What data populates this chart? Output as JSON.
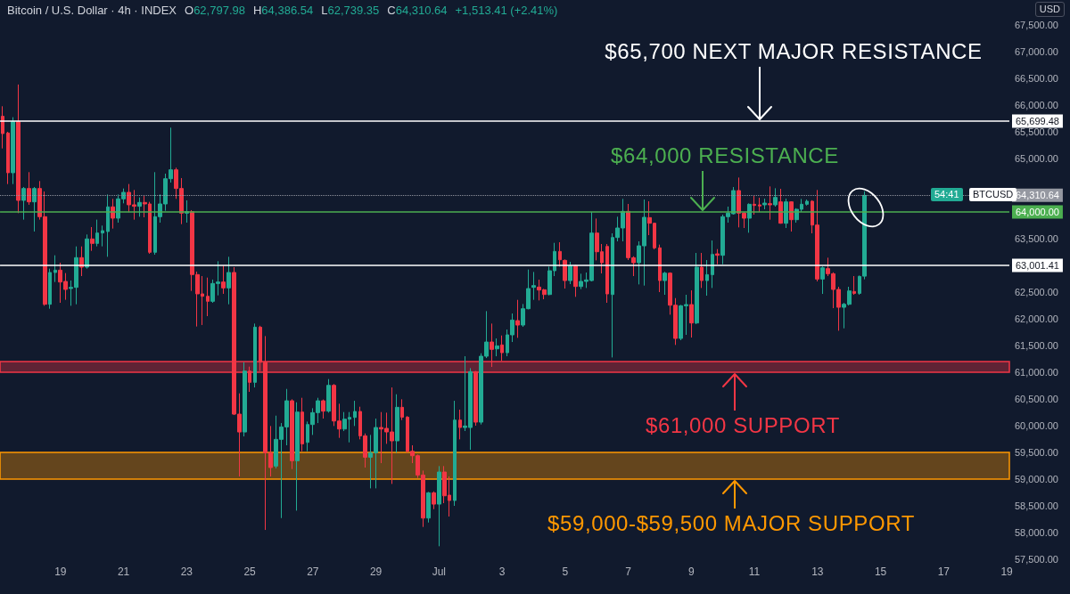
{
  "chart_data": {
    "type": "candlestick",
    "title": "Bitcoin / U.S. Dollar · 4h · INDEX",
    "categories": [
      null,
      null,
      null,
      null,
      null,
      null,
      null,
      null,
      null,
      null,
      null,
      "19",
      null,
      null,
      null,
      null,
      null,
      null,
      null,
      null,
      null,
      null,
      null,
      "21",
      null,
      null,
      null,
      null,
      null,
      null,
      null,
      null,
      null,
      null,
      null,
      "23",
      null,
      null,
      null,
      null,
      null,
      null,
      null,
      null,
      null,
      null,
      null,
      "25",
      null,
      null,
      null,
      null,
      null,
      null,
      null,
      null,
      null,
      null,
      null,
      "27",
      null,
      null,
      null,
      null,
      null,
      null,
      null,
      null,
      null,
      null,
      null,
      "29",
      null,
      null,
      null,
      null,
      null,
      null,
      null,
      null,
      null,
      null,
      null,
      "Jul",
      null,
      null,
      null,
      null,
      null,
      null,
      null,
      null,
      null,
      null,
      null,
      "3",
      null,
      null,
      null,
      null,
      null,
      null,
      null,
      null,
      null,
      null,
      null,
      "5",
      null,
      null,
      null,
      null,
      null,
      null,
      null,
      null,
      null,
      null,
      null,
      "7",
      null,
      null,
      null,
      null,
      null,
      null,
      null,
      null,
      null,
      null,
      null,
      "9",
      null,
      null,
      null,
      null,
      null,
      null,
      null,
      null,
      null,
      null,
      null,
      "11",
      null,
      null,
      null,
      null,
      null,
      null,
      null,
      null,
      null,
      null,
      null,
      "13",
      null,
      null,
      null,
      null,
      null,
      null,
      null,
      null,
      null,
      null,
      null,
      "15",
      null,
      null,
      null,
      null,
      null,
      null,
      null,
      null,
      null,
      null,
      null,
      "17",
      null,
      null,
      null,
      null,
      null,
      null,
      null,
      null,
      null,
      null,
      null,
      "19"
    ],
    "ohlc": [
      [
        65790,
        65978,
        65189,
        65467
      ],
      [
        65478,
        65500,
        64522,
        64734
      ],
      [
        64734,
        65773,
        64522,
        65690
      ],
      [
        65690,
        66385,
        63978,
        64217
      ],
      [
        64217,
        64467,
        63856,
        64439
      ],
      [
        64439,
        64745,
        64134,
        64189
      ],
      [
        64189,
        64467,
        63634,
        64439
      ],
      [
        64439,
        64578,
        63856,
        63911
      ],
      [
        63911,
        64384,
        62244,
        62272
      ],
      [
        62272,
        62939,
        62189,
        62867
      ],
      [
        62867,
        63189,
        62689,
        62911
      ],
      [
        62911,
        63050,
        62300,
        62689
      ],
      [
        62700,
        62856,
        62356,
        62550
      ],
      [
        62567,
        62717,
        62244,
        62589
      ],
      [
        62589,
        63355,
        62272,
        63145
      ],
      [
        63145,
        63355,
        62800,
        62967
      ],
      [
        62967,
        63578,
        62939,
        63495
      ],
      [
        63495,
        63717,
        63272,
        63411
      ],
      [
        63411,
        63856,
        63356,
        63606
      ],
      [
        63606,
        63745,
        63356,
        63650
      ],
      [
        63634,
        64328,
        63161,
        64095
      ],
      [
        64095,
        64245,
        63689,
        63884
      ],
      [
        63884,
        64328,
        63800,
        64245
      ],
      [
        64245,
        64439,
        64161,
        64367
      ],
      [
        64367,
        64523,
        63995,
        64134
      ],
      [
        64134,
        64411,
        63856,
        64106
      ],
      [
        64106,
        64272,
        63911,
        64178
      ],
      [
        64178,
        64300,
        63900,
        64150
      ],
      [
        64150,
        64189,
        63217,
        63245
      ],
      [
        63245,
        64745,
        63200,
        63911
      ],
      [
        63911,
        64328,
        63800,
        64150
      ],
      [
        64150,
        64717,
        64023,
        64622
      ],
      [
        64622,
        65578,
        64550,
        64789
      ],
      [
        64789,
        64828,
        64245,
        64439
      ],
      [
        64439,
        64634,
        63772,
        63978
      ],
      [
        63978,
        64217,
        63800,
        64006
      ],
      [
        64006,
        64034,
        62522,
        62828
      ],
      [
        62828,
        62884,
        61856,
        62467
      ],
      [
        62467,
        62800,
        61884,
        62422
      ],
      [
        62422,
        62772,
        62050,
        62328
      ],
      [
        62328,
        62734,
        62300,
        62661
      ],
      [
        62661,
        63078,
        62439,
        62689
      ],
      [
        62689,
        62995,
        62467,
        62578
      ],
      [
        62578,
        63161,
        62272,
        62867
      ],
      [
        62867,
        62967,
        60200,
        60216
      ],
      [
        60216,
        60605,
        59049,
        59882
      ],
      [
        59882,
        61188,
        59799,
        61022
      ],
      [
        61022,
        61105,
        60633,
        60811
      ],
      [
        60811,
        61911,
        60716,
        61844
      ],
      [
        61844,
        61870,
        61022,
        61188
      ],
      [
        61188,
        61677,
        58049,
        59493
      ],
      [
        59493,
        59994,
        59049,
        59216
      ],
      [
        59244,
        60188,
        59200,
        59744
      ],
      [
        59744,
        60049,
        58271,
        59977
      ],
      [
        59977,
        60688,
        59633,
        60466
      ],
      [
        60466,
        60494,
        59188,
        59344
      ],
      [
        59344,
        60438,
        58410,
        60255
      ],
      [
        60255,
        60522,
        59522,
        59660
      ],
      [
        59688,
        60077,
        59522,
        60022
      ],
      [
        60022,
        60327,
        59827,
        60244
      ],
      [
        60244,
        60522,
        60049,
        60466
      ],
      [
        60466,
        60490,
        60133,
        60272
      ],
      [
        60272,
        60872,
        60244,
        60755
      ],
      [
        60755,
        60780,
        59994,
        60088
      ],
      [
        60088,
        60411,
        59772,
        59938
      ],
      [
        59938,
        60255,
        59899,
        60122
      ],
      [
        60122,
        60255,
        59688,
        60155
      ],
      [
        60155,
        60466,
        59994,
        60266
      ],
      [
        60266,
        60355,
        59744,
        59810
      ],
      [
        59810,
        59855,
        59216,
        59410
      ],
      [
        59410,
        59827,
        58827,
        59493
      ],
      [
        59493,
        60133,
        58827,
        59966
      ],
      [
        59966,
        60255,
        59299,
        59938
      ],
      [
        59950,
        60244,
        59660,
        59883
      ],
      [
        59883,
        60716,
        58910,
        59716
      ],
      [
        59716,
        60588,
        59494,
        60344
      ],
      [
        60344,
        60494,
        60105,
        60160
      ],
      [
        60160,
        60180,
        59494,
        59521
      ],
      [
        59521,
        59633,
        59299,
        59438
      ],
      [
        59438,
        59460,
        59022,
        59077
      ],
      [
        59077,
        59160,
        58105,
        58271
      ],
      [
        58271,
        58760,
        58188,
        58744
      ],
      [
        58744,
        58770,
        58438,
        58532
      ],
      [
        58532,
        59244,
        57744,
        59133
      ],
      [
        59133,
        59244,
        58550,
        58688
      ],
      [
        58700,
        59050,
        58300,
        58600
      ],
      [
        58600,
        60466,
        58500,
        60105
      ],
      [
        60105,
        60300,
        59744,
        59966
      ],
      [
        59966,
        61300,
        59900,
        59994
      ],
      [
        59966,
        61077,
        59549,
        61011
      ],
      [
        61011,
        61022,
        60000,
        60066
      ],
      [
        60066,
        61355,
        60022,
        61300
      ],
      [
        61300,
        62144,
        61266,
        61566
      ],
      [
        61566,
        61911,
        61100,
        61428
      ],
      [
        61438,
        61633,
        61300,
        61494
      ],
      [
        61511,
        61688,
        61211,
        61366
      ],
      [
        61366,
        61800,
        61300,
        61700
      ],
      [
        61700,
        62100,
        61566,
        61977
      ],
      [
        61966,
        62355,
        61644,
        61883
      ],
      [
        61883,
        62277,
        61850,
        62189
      ],
      [
        62189,
        62922,
        62177,
        62566
      ],
      [
        62589,
        62877,
        62355,
        62622
      ],
      [
        62594,
        62733,
        62344,
        62539
      ],
      [
        62544,
        62560,
        62366,
        62455
      ],
      [
        62455,
        62977,
        62440,
        62900
      ],
      [
        62900,
        63422,
        62800,
        63261
      ],
      [
        63261,
        63433,
        62977,
        63105
      ],
      [
        63094,
        63111,
        62566,
        62716
      ],
      [
        62716,
        63066,
        62650,
        62994
      ],
      [
        62994,
        63010,
        62411,
        62605
      ],
      [
        62605,
        62844,
        62555,
        62700
      ],
      [
        62700,
        62866,
        62577,
        62728
      ],
      [
        62716,
        64000,
        62700,
        63605
      ],
      [
        63605,
        63877,
        63094,
        63255
      ],
      [
        63255,
        63400,
        62850,
        63050
      ],
      [
        63355,
        63400,
        62300,
        62466
      ],
      [
        62455,
        63600,
        61277,
        63522
      ],
      [
        63522,
        63911,
        63450,
        63700
      ],
      [
        63700,
        64245,
        63450,
        64011
      ],
      [
        64011,
        64150,
        63100,
        63144
      ],
      [
        63144,
        63170,
        62800,
        63050
      ],
      [
        63050,
        63450,
        62644,
        63366
      ],
      [
        63366,
        64233,
        62622,
        63900
      ],
      [
        63894,
        64200,
        63566,
        63789
      ],
      [
        63789,
        63800,
        63300,
        63328
      ],
      [
        63328,
        63389,
        62500,
        62716
      ],
      [
        62716,
        62880,
        62450,
        62855
      ],
      [
        62855,
        62870,
        62077,
        62255
      ],
      [
        62255,
        62388,
        61511,
        61633
      ],
      [
        61633,
        62260,
        61600,
        62244
      ],
      [
        62244,
        62450,
        61700,
        62266
      ],
      [
        62266,
        62533,
        61650,
        61922
      ],
      [
        61922,
        63233,
        61900,
        62966
      ],
      [
        62966,
        63233,
        62577,
        62716
      ],
      [
        62716,
        63100,
        62433,
        62827
      ],
      [
        62827,
        63466,
        62577,
        63205
      ],
      [
        63216,
        63305,
        63022,
        63189
      ],
      [
        63189,
        63950,
        63022,
        63911
      ],
      [
        63911,
        64100,
        63800,
        63978
      ],
      [
        63966,
        64466,
        63950,
        64400
      ],
      [
        64400,
        64644,
        63711,
        63978
      ],
      [
        63978,
        64000,
        63700,
        63883
      ],
      [
        63883,
        64160,
        63611,
        64144
      ],
      [
        64144,
        64300,
        63950,
        64122
      ],
      [
        64133,
        64266,
        64000,
        64111
      ],
      [
        64133,
        64250,
        64050,
        64166
      ],
      [
        64155,
        64478,
        63855,
        64133
      ],
      [
        64133,
        64444,
        64100,
        64272
      ],
      [
        64189,
        64433,
        63780,
        63789
      ],
      [
        63789,
        64250,
        63700,
        64189
      ],
      [
        64189,
        64200,
        63633,
        63855
      ],
      [
        63855,
        64070,
        63800,
        64050
      ],
      [
        64050,
        64244,
        64000,
        64144
      ],
      [
        64144,
        64233,
        64120,
        64200
      ],
      [
        64200,
        64220,
        63600,
        63755
      ],
      [
        63755,
        64411,
        62700,
        62744
      ],
      [
        62744,
        62980,
        62466,
        62955
      ],
      [
        62939,
        63144,
        62800,
        62844
      ],
      [
        62844,
        62870,
        62200,
        62550
      ],
      [
        62550,
        62600,
        61777,
        62216
      ],
      [
        62216,
        62300,
        61822,
        62272
      ],
      [
        62272,
        62600,
        62250,
        62522
      ],
      [
        62511,
        62800,
        62450,
        62477
      ],
      [
        62477,
        62810,
        62450,
        62794
      ],
      [
        62797.98,
        64386.54,
        62739.35,
        64310.64
      ],
      null,
      null,
      null,
      null,
      null,
      null,
      null,
      null,
      null,
      null,
      null,
      null,
      null,
      null,
      null,
      null,
      null,
      null,
      null,
      null,
      null,
      null,
      null,
      null,
      null,
      null,
      null
    ],
    "colors": [
      "#f23645",
      "#f23645",
      "#22ab94",
      "#f23645",
      "#22ab94",
      "#f23645",
      "#22ab94",
      "#f23645",
      "#f23645",
      "#22ab94",
      "#22ab94",
      "#f23645",
      "#f23645",
      "#22ab94",
      "#22ab94",
      "#f23645",
      "#22ab94",
      "#f23645",
      "#22ab94",
      "#22ab94",
      "#22ab94",
      "#f23645",
      "#22ab94",
      "#22ab94",
      "#f23645",
      "#f23645",
      "#22ab94",
      "#f23645",
      "#f23645",
      "#22ab94",
      "#22ab94",
      "#22ab94",
      "#22ab94",
      "#f23645",
      "#f23645",
      "#22ab94",
      "#f23645",
      "#f23645",
      "#f23645",
      "#f23645",
      "#22ab94",
      "#22ab94",
      "#f23645",
      "#22ab94",
      "#f23645",
      "#f23645",
      "#22ab94",
      "#f23645",
      "#22ab94",
      "#f23645",
      "#f23645",
      "#f23645",
      "#22ab94",
      "#22ab94",
      "#22ab94",
      "#f23645",
      "#22ab94",
      "#f23645",
      "#22ab94",
      "#22ab94",
      "#22ab94",
      "#f23645",
      "#22ab94",
      "#f23645",
      "#f23645",
      "#22ab94",
      "#22ab94",
      "#22ab94",
      "#f23645",
      "#f23645",
      "#22ab94",
      "#22ab94",
      "#f23645",
      "#f23645",
      "#f23645",
      "#22ab94",
      "#f23645",
      "#f23645",
      "#f23645",
      "#f23645",
      "#f23645",
      "#22ab94",
      "#f23645",
      "#22ab94",
      "#f23645",
      "#f23645",
      "#22ab94",
      "#f23645",
      "#22ab94",
      "#22ab94",
      "#f23645",
      "#22ab94",
      "#22ab94",
      "#f23645",
      "#22ab94",
      "#f23645",
      "#22ab94",
      "#22ab94",
      "#f23645",
      "#22ab94",
      "#22ab94",
      "#22ab94",
      "#f23645",
      "#f23645",
      "#22ab94",
      "#22ab94",
      "#f23645",
      "#f23645",
      "#22ab94",
      "#f23645",
      "#22ab94",
      "#22ab94",
      "#22ab94",
      "#f23645",
      "#f23645",
      "#f23645",
      "#22ab94",
      "#22ab94",
      "#22ab94",
      "#f23645",
      "#f23645",
      "#22ab94",
      "#22ab94",
      "#f23645",
      "#f23645",
      "#f23645",
      "#22ab94",
      "#f23645",
      "#f23645",
      "#22ab94",
      "#22ab94",
      "#f23645",
      "#22ab94",
      "#f23645",
      "#22ab94",
      "#22ab94",
      "#f23645",
      "#22ab94",
      "#22ab94",
      "#22ab94",
      "#f23645",
      "#f23645",
      "#22ab94",
      "#f23645",
      "#f23645",
      "#22ab94",
      "#f23645",
      "#22ab94",
      "#f23645",
      "#22ab94",
      "#f23645",
      "#22ab94",
      "#22ab94",
      "#22ab94",
      "#f23645",
      "#f23645",
      "#22ab94",
      "#f23645",
      "#f23645",
      "#f23645",
      "#22ab94",
      "#22ab94",
      "#f23645",
      "#22ab94",
      "#22ab94",
      null,
      null,
      null,
      null,
      null,
      null,
      null,
      null,
      null,
      null,
      null,
      null,
      null,
      null,
      null,
      null,
      null,
      null,
      null,
      null,
      null,
      null,
      null,
      null,
      null,
      null,
      null
    ],
    "ylim": [
      57500,
      67500
    ],
    "yticks": [
      {
        "value": 57500,
        "label": "57,500.00"
      },
      {
        "value": 58000,
        "label": "58,000.00"
      },
      {
        "value": 58500,
        "label": "58,500.00"
      },
      {
        "value": 59000,
        "label": "59,000.00"
      },
      {
        "value": 59500,
        "label": "59,500.00"
      },
      {
        "value": 60000,
        "label": "60,000.00"
      },
      {
        "value": 60500,
        "label": "60,500.00"
      },
      {
        "value": 61000,
        "label": "61,000.00"
      },
      {
        "value": 61500,
        "label": "61,500.00"
      },
      {
        "value": 62000,
        "label": "62,000.00"
      },
      {
        "value": 62500,
        "label": "62,500.00"
      },
      {
        "value": 63500,
        "label": "63,500.00"
      },
      {
        "value": 65000,
        "label": "65,000.00"
      },
      {
        "value": 65500,
        "label": "65,500.00"
      },
      {
        "value": 66000,
        "label": "66,000.00"
      },
      {
        "value": 66500,
        "label": "66,500.00"
      },
      {
        "value": 67000,
        "label": "67,000.00"
      },
      {
        "value": 67500,
        "label": "67,500.00"
      }
    ],
    "ref_lines": [
      {
        "axis": "y",
        "value": 65699.48,
        "label": "65,699.48",
        "color": "#ffffff",
        "line_style": "solid"
      },
      {
        "axis": "y",
        "value": 63001.41,
        "label": "63,001.41",
        "color": "#ffffff",
        "line_style": "solid"
      },
      {
        "axis": "y",
        "value": 64000,
        "label": "64,000.00",
        "color": "#4caf50",
        "line_style": "solid"
      },
      {
        "axis": "y",
        "value": 64310.64,
        "label": "64,310.64",
        "color": "#9598a1",
        "line_style": "dotted"
      }
    ],
    "bands": [
      {
        "axis": "y",
        "from": 61000,
        "to": 61200,
        "color": "#f23645"
      },
      {
        "axis": "y",
        "from": 59000,
        "to": 59500,
        "color": "#ff9800"
      }
    ],
    "annotations": [
      {
        "text": "$65,700 NEXT MAJOR RESISTANCE",
        "y": 65699.48
      },
      {
        "text": "$64,000 RESISTANCE",
        "y": 64000
      },
      {
        "text": "$61,000 SUPPORT",
        "y": 61000
      },
      {
        "text": "$59,000-$59,500 MAJOR SUPPORT",
        "y": 59000
      },
      "O62,797.98",
      "H64,386.54",
      "L62,739.35",
      "C64,310.64",
      "+1,513.41 (+2.41%)",
      "USD",
      "BTCUSD",
      "54:41"
    ]
  }
}
